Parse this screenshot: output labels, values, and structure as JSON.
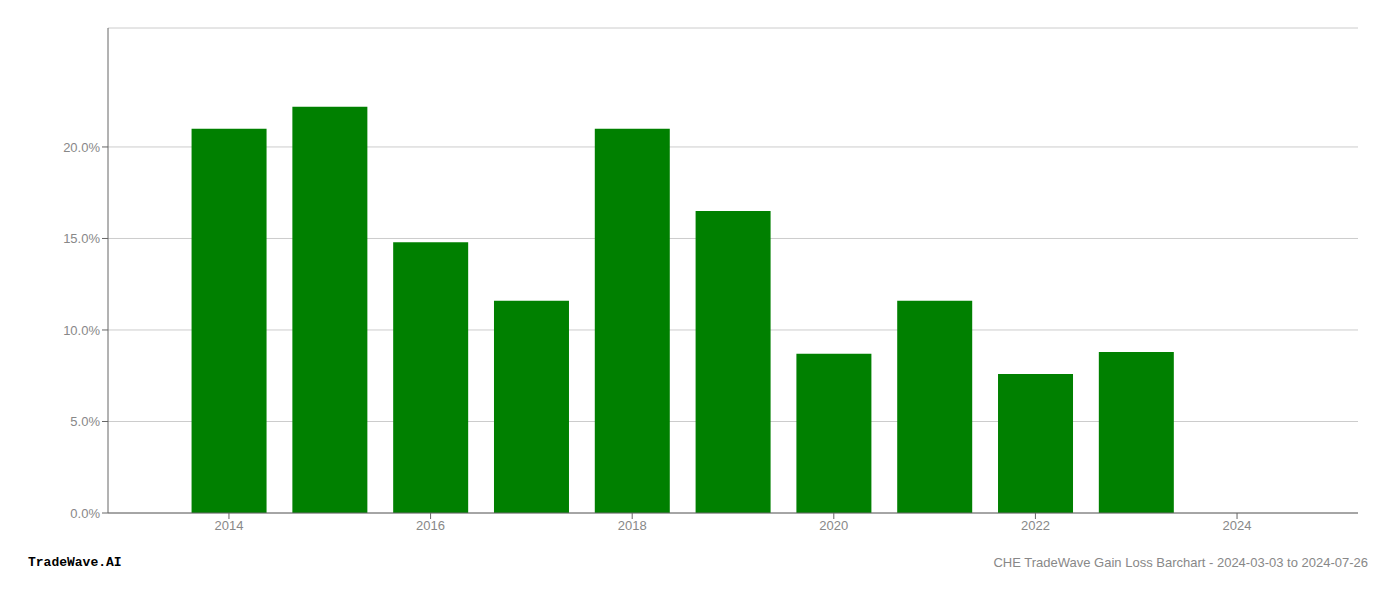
{
  "chart_data": {
    "type": "bar",
    "x": [
      2014,
      2015,
      2016,
      2017,
      2018,
      2019,
      2020,
      2021,
      2022,
      2023
    ],
    "values": [
      0.21,
      0.222,
      0.148,
      0.116,
      0.21,
      0.165,
      0.087,
      0.116,
      0.076,
      0.088
    ],
    "color": "#008000",
    "xlim": [
      2012.8,
      2025.2
    ],
    "xticks": [
      2014,
      2016,
      2018,
      2020,
      2022,
      2024
    ],
    "ylim": [
      0,
      0.265
    ],
    "yticks": [
      {
        "value": 0.0,
        "label": "0.0%"
      },
      {
        "value": 0.05,
        "label": "5.0%"
      },
      {
        "value": 0.1,
        "label": "10.0%"
      },
      {
        "value": 0.15,
        "label": "15.0%"
      },
      {
        "value": 0.2,
        "label": "20.0%"
      }
    ],
    "grid": true,
    "annotations": [
      "TradeWave.AI",
      "CHE TradeWave Gain Loss Barchart - 2024-03-03 to 2024-07-26"
    ]
  }
}
